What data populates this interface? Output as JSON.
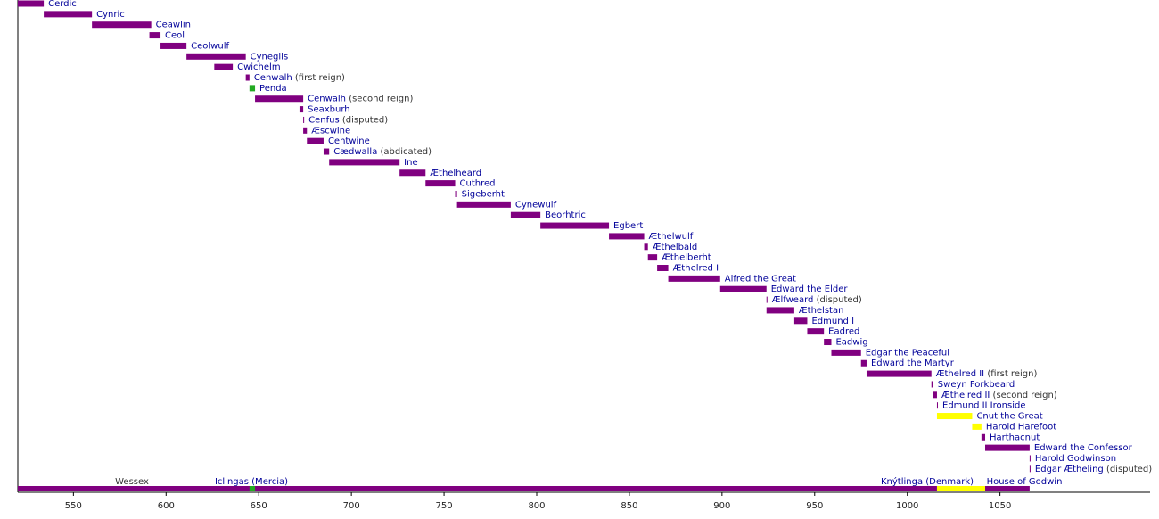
{
  "chart_data": {
    "type": "timeline",
    "color": "#800080",
    "xlim": [
      520,
      1131
    ],
    "xticks": [
      550,
      600,
      650,
      700,
      750,
      800,
      850,
      900,
      950,
      1000,
      1050
    ],
    "rows": [
      {
        "name": "Cerdic",
        "start": 520,
        "end": 534
      },
      {
        "name": "Cynric",
        "start": 534,
        "end": 560
      },
      {
        "name": "Ceawlin",
        "start": 560,
        "end": 592
      },
      {
        "name": "Ceol",
        "start": 591,
        "end": 597
      },
      {
        "name": "Ceolwulf",
        "start": 597,
        "end": 611
      },
      {
        "name": "Cynegils",
        "start": 611,
        "end": 643
      },
      {
        "name": "Cwichelm",
        "start": 626,
        "end": 636
      },
      {
        "name": "Cenwalh",
        "note": "(first reign)",
        "start": 643,
        "end": 645
      },
      {
        "name": "Penda",
        "start": 645,
        "end": 648,
        "color": "#22aa22"
      },
      {
        "name": "Cenwalh",
        "note": "(second reign)",
        "start": 648,
        "end": 674
      },
      {
        "name": "Seaxburh",
        "start": 672,
        "end": 674
      },
      {
        "name": "Cenfus",
        "note": "(disputed)",
        "start": 674,
        "end": 674.5
      },
      {
        "name": "Æscwine",
        "start": 674,
        "end": 676
      },
      {
        "name": "Centwine",
        "start": 676,
        "end": 685
      },
      {
        "name": "Cædwalla",
        "note": "(abdicated)",
        "start": 685,
        "end": 688
      },
      {
        "name": "Ine",
        "start": 688,
        "end": 726
      },
      {
        "name": "Æthelheard",
        "start": 726,
        "end": 740
      },
      {
        "name": "Cuthred",
        "start": 740,
        "end": 756
      },
      {
        "name": "Sigeberht",
        "start": 756,
        "end": 757
      },
      {
        "name": "Cynewulf",
        "start": 757,
        "end": 786
      },
      {
        "name": "Beorhtric",
        "start": 786,
        "end": 802
      },
      {
        "name": "Egbert",
        "start": 802,
        "end": 839
      },
      {
        "name": "Æthelwulf",
        "start": 839,
        "end": 858
      },
      {
        "name": "Æthelbald",
        "start": 858,
        "end": 860
      },
      {
        "name": "Æthelberht",
        "start": 860,
        "end": 865
      },
      {
        "name": "Æthelred I",
        "start": 865,
        "end": 871
      },
      {
        "name": "Alfred the Great",
        "start": 871,
        "end": 899
      },
      {
        "name": "Edward the Elder",
        "start": 899,
        "end": 924
      },
      {
        "name": "Ælfweard",
        "note": "(disputed)",
        "start": 924,
        "end": 924.5
      },
      {
        "name": "Æthelstan",
        "start": 924,
        "end": 939
      },
      {
        "name": "Edmund I",
        "start": 939,
        "end": 946
      },
      {
        "name": "Eadred",
        "start": 946,
        "end": 955
      },
      {
        "name": "Eadwig",
        "start": 955,
        "end": 959
      },
      {
        "name": "Edgar the Peaceful",
        "start": 959,
        "end": 975
      },
      {
        "name": "Edward the Martyr",
        "start": 975,
        "end": 978
      },
      {
        "name": "Æthelred II",
        "note": "(first reign)",
        "start": 978,
        "end": 1013
      },
      {
        "name": "Sweyn Forkbeard",
        "start": 1013,
        "end": 1014
      },
      {
        "name": "Æthelred II",
        "note": "(second reign)",
        "start": 1014,
        "end": 1016
      },
      {
        "name": "Edmund II Ironside",
        "start": 1016,
        "end": 1016.5
      },
      {
        "name": "Cnut the Great",
        "start": 1016,
        "end": 1035,
        "color": "#ffff00"
      },
      {
        "name": "Harold Harefoot",
        "start": 1035,
        "end": 1040,
        "color": "#ffff00"
      },
      {
        "name": "Harthacnut",
        "start": 1040,
        "end": 1042
      },
      {
        "name": "Edward the Confessor",
        "start": 1042,
        "end": 1066
      },
      {
        "name": "Harold Godwinson",
        "start": 1066,
        "end": 1066.5
      },
      {
        "name": "Edgar Ætheling",
        "note": "(disputed)",
        "start": 1066,
        "end": 1066.5
      }
    ],
    "segments": [
      {
        "start": 520,
        "end": 1016
      },
      {
        "start": 645,
        "end": 648,
        "color": "#22aa22"
      },
      {
        "start": 1016,
        "end": 1042,
        "color": "#ffff00"
      },
      {
        "start": 1042,
        "end": 1066
      }
    ],
    "houses": [
      "Wessex",
      "Iclingas (Mercia)",
      "Knýtlinga (Denmark)",
      "House of Godwin"
    ]
  }
}
